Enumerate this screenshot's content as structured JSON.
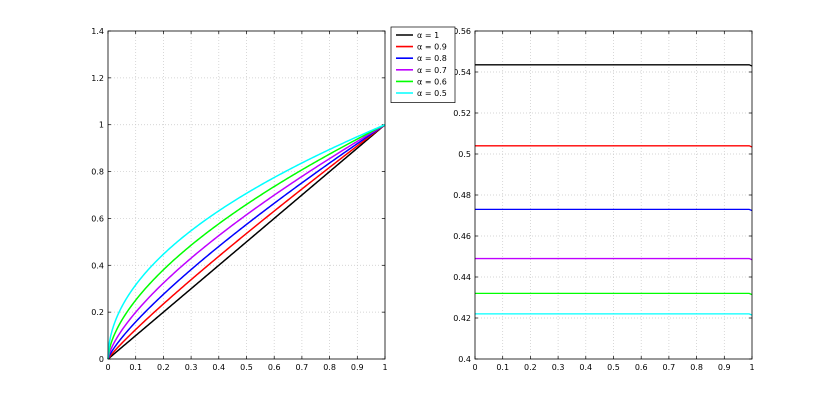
{
  "chart_data": [
    {
      "type": "line",
      "title": "",
      "xlabel": "",
      "ylabel": "",
      "xlim": [
        0,
        1
      ],
      "ylim": [
        0,
        1.4
      ],
      "x_ticks": [
        "0",
        "0.1",
        "0.2",
        "0.3",
        "0.4",
        "0.5",
        "0.6",
        "0.7",
        "0.8",
        "0.9",
        "1"
      ],
      "y_ticks": [
        "0",
        "0.2",
        "0.4",
        "0.6",
        "0.8",
        "1",
        "1.2",
        "1.4"
      ],
      "grid": true,
      "legend": "top-right",
      "curve": "y = x^alpha",
      "series": [
        {
          "name": "α = 1",
          "alpha": 1.0,
          "color": "#000000"
        },
        {
          "name": "α = 0.9",
          "alpha": 0.9,
          "color": "#ff0000"
        },
        {
          "name": "α = 0.8",
          "alpha": 0.8,
          "color": "#0000ff"
        },
        {
          "name": "α = 0.7",
          "alpha": 0.7,
          "color": "#bf00ff"
        },
        {
          "name": "α = 0.6",
          "alpha": 0.6,
          "color": "#00ff00"
        },
        {
          "name": "α = 0.5",
          "alpha": 0.5,
          "color": "#00ffff"
        }
      ]
    },
    {
      "type": "line",
      "title": "",
      "xlabel": "",
      "ylabel": "",
      "xlim": [
        0,
        1
      ],
      "ylim": [
        0.4,
        0.56
      ],
      "x_ticks": [
        "0",
        "0.1",
        "0.2",
        "0.3",
        "0.4",
        "0.5",
        "0.6",
        "0.7",
        "0.8",
        "0.9",
        "1"
      ],
      "y_ticks": [
        "0.4",
        "0.42",
        "0.44",
        "0.46",
        "0.48",
        "0.5",
        "0.52",
        "0.54",
        "0.56"
      ],
      "grid": true,
      "series": [
        {
          "alpha": 1.0,
          "color": "#000000",
          "value": 0.5435
        },
        {
          "alpha": 0.9,
          "color": "#ff0000",
          "value": 0.504
        },
        {
          "alpha": 0.8,
          "color": "#0000ff",
          "value": 0.473
        },
        {
          "alpha": 0.7,
          "color": "#bf00ff",
          "value": 0.449
        },
        {
          "alpha": 0.6,
          "color": "#00ff00",
          "value": 0.432
        },
        {
          "alpha": 0.5,
          "color": "#00ffff",
          "value": 0.422
        }
      ]
    }
  ]
}
